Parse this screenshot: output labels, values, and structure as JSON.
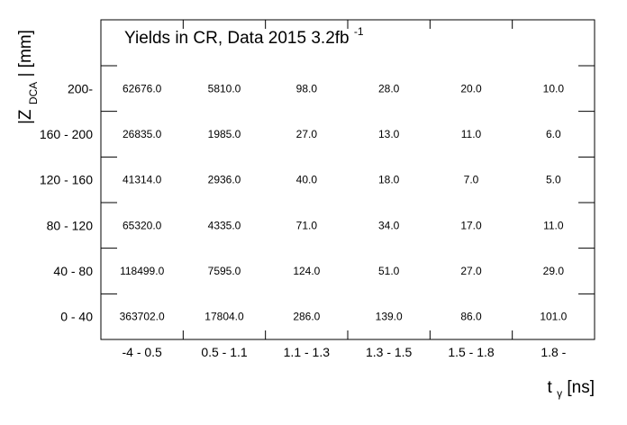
{
  "chart_data": {
    "type": "table",
    "title": "Yields in CR, Data 2015 3.2fb",
    "title_superscript": "-1",
    "xlabel": "t",
    "xlabel_subscript": "γ",
    "xlabel_unit": " [ns]",
    "ylabel_prefix": "|Z",
    "ylabel_subscript": "DCA",
    "ylabel_suffix": "| [mm]",
    "x_categories": [
      "-4 - 0.5",
      "0.5 - 1.1",
      "1.1 - 1.3",
      "1.3 - 1.5",
      "1.5 - 1.8",
      "1.8 -"
    ],
    "y_categories": [
      "0 - 40",
      "40 - 80",
      "80 - 120",
      "120 - 160",
      "160 - 200",
      "200-"
    ],
    "cells": [
      [
        "363702.0",
        "17804.0",
        "286.0",
        "139.0",
        "86.0",
        "101.0"
      ],
      [
        "118499.0",
        "7595.0",
        "124.0",
        "51.0",
        "27.0",
        "29.0"
      ],
      [
        "65320.0",
        "4335.0",
        "71.0",
        "34.0",
        "17.0",
        "11.0"
      ],
      [
        "41314.0",
        "2936.0",
        "40.0",
        "18.0",
        "7.0",
        "5.0"
      ],
      [
        "26835.0",
        "1985.0",
        "27.0",
        "13.0",
        "11.0",
        "6.0"
      ],
      [
        "62676.0",
        "5810.0",
        "98.0",
        "28.0",
        "20.0",
        "10.0"
      ]
    ]
  }
}
